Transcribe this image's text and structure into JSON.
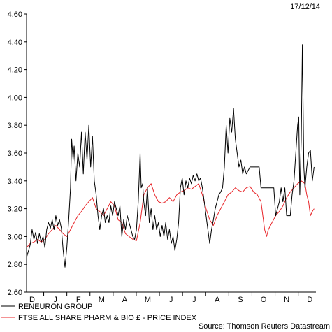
{
  "chart_data": {
    "type": "line",
    "date_label": "17/12/14",
    "source": "Source: Thomson Reuters Datastream",
    "ylim": [
      2.6,
      4.6
    ],
    "y_ticks": [
      "2.60",
      "2.80",
      "3.00",
      "3.20",
      "3.40",
      "3.60",
      "3.80",
      "4.00",
      "4.20",
      "4.40",
      "4.60"
    ],
    "x_ticks": [
      "D",
      "J",
      "F",
      "M",
      "A",
      "M",
      "J",
      "J",
      "A",
      "S",
      "O",
      "N",
      "D"
    ],
    "grid": false,
    "legend_position": "bottom-left",
    "series": [
      {
        "name": "RENEURON GROUP",
        "color": "#000000",
        "points": [
          [
            0.0,
            2.85
          ],
          [
            1.0,
            2.94
          ],
          [
            1.5,
            3.05
          ],
          [
            2.0,
            2.98
          ],
          [
            2.5,
            3.03
          ],
          [
            3.0,
            2.95
          ],
          [
            3.5,
            3.02
          ],
          [
            4.0,
            2.96
          ],
          [
            4.5,
            3.0
          ],
          [
            5.0,
            2.92
          ],
          [
            5.5,
            3.05
          ],
          [
            6.0,
            3.1
          ],
          [
            6.5,
            3.06
          ],
          [
            7.0,
            3.12
          ],
          [
            7.5,
            3.05
          ],
          [
            8.0,
            3.15
          ],
          [
            8.5,
            3.08
          ],
          [
            9.0,
            3.12
          ],
          [
            9.5,
            3.06
          ],
          [
            10.0,
            2.9
          ],
          [
            10.5,
            2.78
          ],
          [
            11.0,
            2.92
          ],
          [
            11.5,
            3.12
          ],
          [
            12.0,
            3.35
          ],
          [
            12.3,
            3.7
          ],
          [
            12.7,
            3.55
          ],
          [
            13.0,
            3.65
          ],
          [
            13.5,
            3.4
          ],
          [
            14.0,
            3.6
          ],
          [
            14.5,
            3.5
          ],
          [
            15.0,
            3.75
          ],
          [
            15.5,
            3.45
          ],
          [
            16.0,
            3.75
          ],
          [
            16.5,
            3.55
          ],
          [
            17.0,
            3.8
          ],
          [
            17.5,
            3.5
          ],
          [
            18.0,
            3.72
          ],
          [
            18.5,
            3.4
          ],
          [
            19.0,
            3.3
          ],
          [
            19.5,
            3.15
          ],
          [
            20.0,
            3.05
          ],
          [
            20.5,
            3.15
          ],
          [
            21.0,
            3.2
          ],
          [
            21.5,
            3.1
          ],
          [
            22.0,
            3.15
          ],
          [
            22.5,
            3.1
          ],
          [
            23.0,
            3.22
          ],
          [
            23.5,
            3.15
          ],
          [
            24.0,
            3.25
          ],
          [
            24.5,
            3.2
          ],
          [
            25.0,
            3.15
          ],
          [
            25.5,
            3.22
          ],
          [
            26.0,
            3.0
          ],
          [
            26.5,
            3.12
          ],
          [
            27.0,
            3.05
          ],
          [
            27.5,
            3.15
          ],
          [
            28.0,
            3.1
          ],
          [
            28.5,
            3.05
          ],
          [
            29.0,
            3.0
          ],
          [
            29.5,
            2.98
          ],
          [
            30.0,
            3.05
          ],
          [
            30.5,
            3.25
          ],
          [
            31.0,
            3.6
          ],
          [
            31.3,
            3.35
          ],
          [
            31.7,
            3.38
          ],
          [
            32.0,
            3.25
          ],
          [
            32.5,
            3.15
          ],
          [
            33.0,
            3.35
          ],
          [
            33.5,
            3.1
          ],
          [
            34.0,
            3.2
          ],
          [
            34.5,
            3.05
          ],
          [
            35.0,
            3.15
          ],
          [
            35.5,
            3.05
          ],
          [
            36.0,
            3.1
          ],
          [
            36.5,
            3.0
          ],
          [
            37.0,
            3.08
          ],
          [
            37.5,
            3.0
          ],
          [
            38.0,
            3.1
          ],
          [
            38.5,
            2.98
          ],
          [
            39.0,
            3.05
          ],
          [
            39.5,
            2.95
          ],
          [
            40.0,
            3.0
          ],
          [
            40.5,
            2.9
          ],
          [
            41.0,
            2.98
          ],
          [
            41.5,
            3.1
          ],
          [
            42.0,
            3.35
          ],
          [
            42.5,
            3.42
          ],
          [
            43.0,
            3.3
          ],
          [
            43.5,
            3.4
          ],
          [
            44.0,
            3.35
          ],
          [
            44.5,
            3.42
          ],
          [
            45.0,
            3.38
          ],
          [
            45.5,
            3.44
          ],
          [
            46.0,
            3.4
          ],
          [
            46.5,
            3.45
          ],
          [
            47.0,
            3.4
          ],
          [
            47.5,
            3.42
          ],
          [
            48.0,
            3.35
          ],
          [
            48.5,
            3.25
          ],
          [
            49.0,
            3.15
          ],
          [
            49.5,
            3.05
          ],
          [
            50.0,
            2.95
          ],
          [
            50.5,
            3.05
          ],
          [
            51.0,
            3.12
          ],
          [
            51.5,
            3.2
          ],
          [
            52.0,
            3.25
          ],
          [
            52.5,
            3.3
          ],
          [
            53.0,
            3.32
          ],
          [
            53.5,
            3.35
          ],
          [
            54.0,
            3.5
          ],
          [
            54.5,
            3.8
          ],
          [
            55.0,
            3.6
          ],
          [
            55.5,
            3.85
          ],
          [
            56.0,
            3.75
          ],
          [
            56.5,
            3.92
          ],
          [
            57.0,
            3.7
          ],
          [
            57.5,
            3.6
          ],
          [
            58.0,
            3.5
          ],
          [
            58.5,
            3.55
          ],
          [
            59.0,
            3.45
          ],
          [
            59.5,
            3.5
          ],
          [
            60.0,
            3.45
          ],
          [
            61.0,
            3.5
          ],
          [
            62.0,
            3.5
          ],
          [
            63.0,
            3.5
          ],
          [
            63.5,
            3.5
          ],
          [
            64.0,
            3.35
          ],
          [
            65.0,
            3.35
          ],
          [
            66.0,
            3.35
          ],
          [
            67.0,
            3.35
          ],
          [
            67.5,
            3.35
          ],
          [
            68.0,
            3.15
          ],
          [
            68.5,
            3.2
          ],
          [
            69.0,
            3.25
          ],
          [
            69.5,
            3.35
          ],
          [
            70.0,
            3.25
          ],
          [
            70.5,
            3.35
          ],
          [
            71.0,
            3.15
          ],
          [
            71.5,
            3.15
          ],
          [
            72.0,
            3.15
          ],
          [
            72.5,
            3.3
          ],
          [
            73.0,
            3.4
          ],
          [
            73.5,
            3.6
          ],
          [
            74.0,
            3.8
          ],
          [
            74.3,
            3.86
          ],
          [
            74.6,
            3.3
          ],
          [
            75.0,
            3.7
          ],
          [
            75.3,
            4.38
          ],
          [
            75.7,
            3.5
          ],
          [
            76.0,
            3.35
          ],
          [
            76.5,
            3.5
          ],
          [
            77.0,
            3.6
          ],
          [
            77.5,
            3.62
          ],
          [
            78.0,
            3.4
          ],
          [
            78.5,
            3.5
          ]
        ]
      },
      {
        "name": "FTSE ALL SHARE PHARM & BIO £ - PRICE INDEX",
        "color": "#e8262a",
        "points": [
          [
            0.0,
            2.92
          ],
          [
            1.0,
            2.95
          ],
          [
            2.0,
            2.96
          ],
          [
            3.0,
            2.98
          ],
          [
            4.0,
            2.96
          ],
          [
            5.0,
            2.98
          ],
          [
            6.0,
            3.02
          ],
          [
            7.0,
            3.05
          ],
          [
            8.0,
            3.08
          ],
          [
            9.0,
            3.05
          ],
          [
            10.0,
            3.02
          ],
          [
            11.0,
            3.0
          ],
          [
            12.0,
            3.05
          ],
          [
            13.0,
            3.1
          ],
          [
            14.0,
            3.15
          ],
          [
            15.0,
            3.18
          ],
          [
            16.0,
            3.22
          ],
          [
            17.0,
            3.25
          ],
          [
            18.0,
            3.28
          ],
          [
            19.0,
            3.2
          ],
          [
            20.0,
            3.18
          ],
          [
            21.0,
            3.15
          ],
          [
            22.0,
            3.2
          ],
          [
            23.0,
            3.25
          ],
          [
            24.0,
            3.22
          ],
          [
            25.0,
            3.12
          ],
          [
            26.0,
            3.1
          ],
          [
            27.0,
            3.02
          ],
          [
            28.0,
            3.0
          ],
          [
            29.0,
            2.98
          ],
          [
            30.0,
            2.97
          ],
          [
            31.0,
            3.1
          ],
          [
            32.0,
            3.3
          ],
          [
            33.0,
            3.35
          ],
          [
            34.0,
            3.38
          ],
          [
            35.0,
            3.3
          ],
          [
            36.0,
            3.25
          ],
          [
            37.0,
            3.24
          ],
          [
            38.0,
            3.25
          ],
          [
            39.0,
            3.28
          ],
          [
            40.0,
            3.25
          ],
          [
            41.0,
            3.3
          ],
          [
            42.0,
            3.32
          ],
          [
            43.0,
            3.33
          ],
          [
            44.0,
            3.35
          ],
          [
            45.0,
            3.34
          ],
          [
            46.0,
            3.36
          ],
          [
            47.0,
            3.38
          ],
          [
            48.0,
            3.3
          ],
          [
            49.0,
            3.2
          ],
          [
            50.0,
            3.12
          ],
          [
            51.0,
            3.08
          ],
          [
            52.0,
            3.15
          ],
          [
            53.0,
            3.2
          ],
          [
            54.0,
            3.25
          ],
          [
            55.0,
            3.3
          ],
          [
            56.0,
            3.32
          ],
          [
            57.0,
            3.35
          ],
          [
            58.0,
            3.33
          ],
          [
            59.0,
            3.32
          ],
          [
            60.0,
            3.35
          ],
          [
            61.0,
            3.36
          ],
          [
            62.0,
            3.32
          ],
          [
            63.0,
            3.3
          ],
          [
            64.0,
            3.25
          ],
          [
            65.0,
            3.05
          ],
          [
            65.5,
            3.0
          ],
          [
            66.0,
            3.05
          ],
          [
            67.0,
            3.1
          ],
          [
            68.0,
            3.15
          ],
          [
            69.0,
            3.18
          ],
          [
            70.0,
            3.22
          ],
          [
            71.0,
            3.28
          ],
          [
            72.0,
            3.32
          ],
          [
            73.0,
            3.35
          ],
          [
            74.0,
            3.38
          ],
          [
            75.0,
            3.4
          ],
          [
            76.0,
            3.38
          ],
          [
            76.5,
            3.3
          ],
          [
            77.0,
            3.25
          ],
          [
            77.5,
            3.15
          ],
          [
            78.0,
            3.18
          ],
          [
            78.5,
            3.2
          ]
        ]
      }
    ]
  }
}
